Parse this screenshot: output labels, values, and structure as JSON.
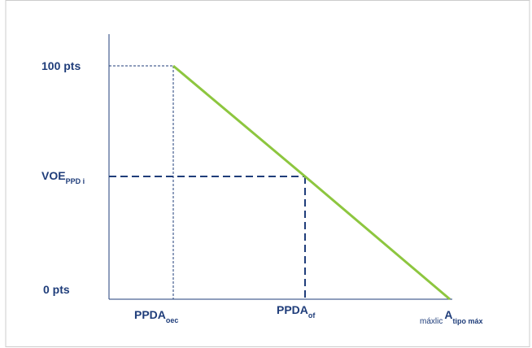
{
  "chart_data": {
    "type": "line",
    "y_ticks": [
      {
        "main": "100 pts",
        "sub": ""
      },
      {
        "main": "VOE",
        "sub": "PPD i"
      },
      {
        "main": "0 pts",
        "sub": ""
      }
    ],
    "x_ticks": [
      {
        "main": "PPDA",
        "sub": "oec"
      },
      {
        "main": "PPDA",
        "sub": "of"
      }
    ],
    "x_last_tick": {
      "prefix": "máxlic",
      "main": "A",
      "sub": "tipo máx"
    },
    "series": [
      {
        "points": [
          {
            "x": "PPDA oec",
            "y": "100 pts"
          },
          {
            "x": "PPDA of",
            "y": "VOE PPD i"
          },
          {
            "x": "tipo máx",
            "y": "0 pts"
          }
        ]
      }
    ],
    "colors": {
      "line": "#8dc63f",
      "axis": "#1f3d7a",
      "guides": "#1f3d7a",
      "frame": "#cccccc"
    }
  }
}
